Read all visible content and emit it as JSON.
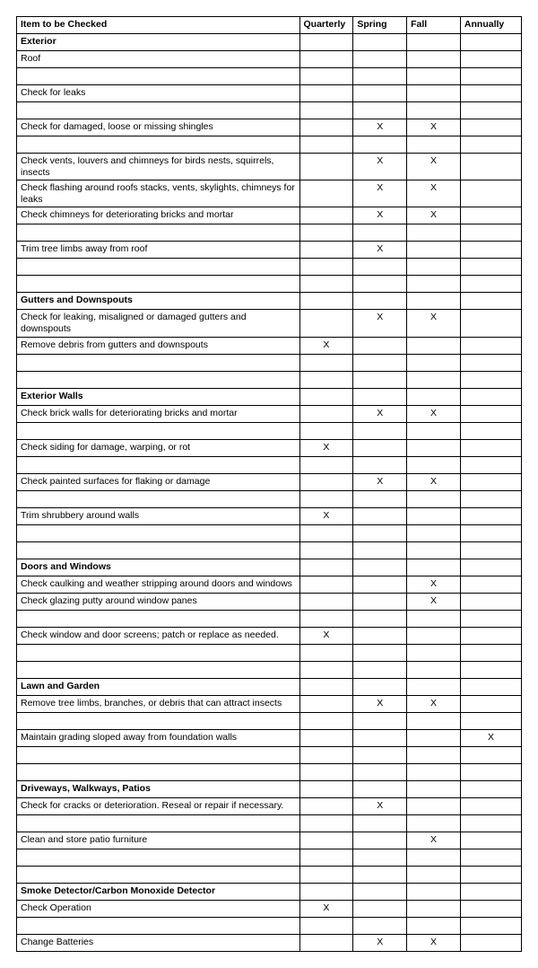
{
  "columns": {
    "item": "Item to be Checked",
    "quarterly": "Quarterly",
    "spring": "Spring",
    "fall": "Fall",
    "annually": "Annually"
  },
  "check_mark": "X",
  "rows": [
    {
      "type": "section",
      "text": "Exterior"
    },
    {
      "type": "item",
      "text": "Roof",
      "q": false,
      "s": false,
      "f": false,
      "a": false
    },
    {
      "type": "blank"
    },
    {
      "type": "item",
      "text": "Check for leaks",
      "q": false,
      "s": false,
      "f": false,
      "a": false
    },
    {
      "type": "blank"
    },
    {
      "type": "item",
      "text": "Check for damaged, loose or missing shingles",
      "q": false,
      "s": true,
      "f": true,
      "a": false
    },
    {
      "type": "blank"
    },
    {
      "type": "item",
      "text": "Check vents, louvers and chimneys for birds nests, squirrels, insects",
      "q": false,
      "s": true,
      "f": true,
      "a": false
    },
    {
      "type": "item",
      "text": "Check flashing around roofs stacks, vents, skylights, chimneys for leaks",
      "q": false,
      "s": true,
      "f": true,
      "a": false
    },
    {
      "type": "item",
      "text": "Check chimneys for deteriorating bricks and mortar",
      "q": false,
      "s": true,
      "f": true,
      "a": false
    },
    {
      "type": "blank"
    },
    {
      "type": "item",
      "text": "Trim tree limbs away from roof",
      "q": false,
      "s": true,
      "f": false,
      "a": false
    },
    {
      "type": "blank"
    },
    {
      "type": "blank"
    },
    {
      "type": "section",
      "text": "Gutters and Downspouts"
    },
    {
      "type": "item",
      "text": "Check for leaking, misaligned or damaged gutters and downspouts",
      "q": false,
      "s": true,
      "f": true,
      "a": false
    },
    {
      "type": "item",
      "text": "Remove debris from gutters and downspouts",
      "q": true,
      "s": false,
      "f": false,
      "a": false
    },
    {
      "type": "blank"
    },
    {
      "type": "blank"
    },
    {
      "type": "section",
      "text": "Exterior Walls"
    },
    {
      "type": "item",
      "text": "Check brick walls for deteriorating bricks and mortar",
      "q": false,
      "s": true,
      "f": true,
      "a": false
    },
    {
      "type": "blank"
    },
    {
      "type": "item",
      "text": "Check siding for damage, warping, or rot",
      "q": true,
      "s": false,
      "f": false,
      "a": false
    },
    {
      "type": "blank"
    },
    {
      "type": "item",
      "text": "Check painted surfaces for flaking or damage",
      "q": false,
      "s": true,
      "f": true,
      "a": false
    },
    {
      "type": "blank"
    },
    {
      "type": "item",
      "text": "Trim shrubbery around walls",
      "q": true,
      "s": false,
      "f": false,
      "a": false
    },
    {
      "type": "blank"
    },
    {
      "type": "blank"
    },
    {
      "type": "section",
      "text": "Doors and Windows"
    },
    {
      "type": "item",
      "text": "Check caulking and weather stripping around doors and windows",
      "q": false,
      "s": false,
      "f": true,
      "a": false
    },
    {
      "type": "item",
      "text": "Check glazing putty around window panes",
      "q": false,
      "s": false,
      "f": true,
      "a": false
    },
    {
      "type": "blank"
    },
    {
      "type": "item",
      "text": "Check window and door screens; patch or replace as needed.",
      "q": true,
      "s": false,
      "f": false,
      "a": false
    },
    {
      "type": "blank"
    },
    {
      "type": "blank"
    },
    {
      "type": "section",
      "text": "Lawn and Garden"
    },
    {
      "type": "item",
      "text": "Remove tree limbs, branches, or debris that can attract insects",
      "q": false,
      "s": true,
      "f": true,
      "a": false
    },
    {
      "type": "blank"
    },
    {
      "type": "item",
      "text": "Maintain grading sloped away from foundation walls",
      "q": false,
      "s": false,
      "f": false,
      "a": true
    },
    {
      "type": "blank"
    },
    {
      "type": "blank"
    },
    {
      "type": "section",
      "text": "Driveways, Walkways, Patios"
    },
    {
      "type": "item",
      "text": "Check for cracks or deterioration. Reseal or repair if necessary.",
      "q": false,
      "s": true,
      "f": false,
      "a": false
    },
    {
      "type": "blank"
    },
    {
      "type": "item",
      "text": "Clean and store patio furniture",
      "q": false,
      "s": false,
      "f": true,
      "a": false
    },
    {
      "type": "blank"
    },
    {
      "type": "blank"
    },
    {
      "type": "section",
      "text": "Smoke Detector/Carbon Monoxide Detector"
    },
    {
      "type": "item",
      "text": "Check Operation",
      "q": true,
      "s": false,
      "f": false,
      "a": false
    },
    {
      "type": "blank"
    },
    {
      "type": "item",
      "text": "Change Batteries",
      "q": false,
      "s": true,
      "f": true,
      "a": false
    }
  ]
}
